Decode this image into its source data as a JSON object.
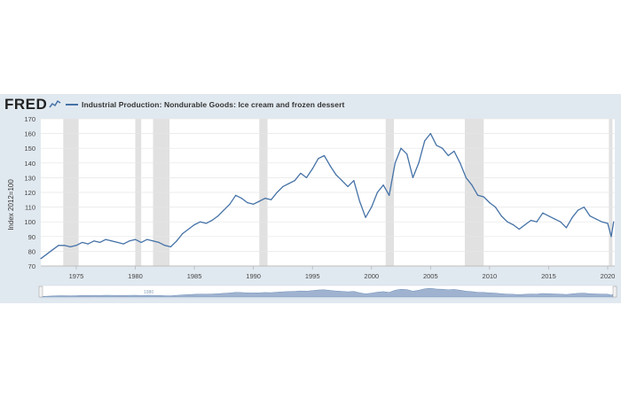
{
  "header": {
    "logo_text": "FRED",
    "legend_label": "Industrial Production: Nondurable Goods: Ice cream and frozen dessert",
    "series_color": "#4572a7",
    "logo_graph_icon": "line-graph-icon"
  },
  "navigator": {
    "left_handle_icon": "range-handle-icon",
    "right_handle_icon": "range-handle-icon",
    "label": "1980"
  },
  "chart_data": {
    "type": "line",
    "title": "",
    "xlabel": "",
    "ylabel": "Index 2012=100",
    "xlim": [
      1972.0,
      2020.6
    ],
    "ylim": [
      70,
      170
    ],
    "yticks": [
      70,
      80,
      90,
      100,
      110,
      120,
      130,
      140,
      150,
      160,
      170
    ],
    "xticks": [
      1975,
      1980,
      1985,
      1990,
      1995,
      2000,
      2005,
      2010,
      2015,
      2020
    ],
    "grid": "horizontal",
    "recessions": [
      [
        1973.9,
        1975.2
      ],
      [
        1980.0,
        1980.5
      ],
      [
        1981.5,
        1982.9
      ],
      [
        1990.5,
        1991.2
      ],
      [
        2001.2,
        2001.9
      ],
      [
        2007.9,
        2009.5
      ],
      [
        2020.1,
        2020.4
      ]
    ],
    "series": [
      {
        "name": "Industrial Production: Nondurable Goods: Ice cream and frozen dessert",
        "x": [
          1972.0,
          1972.5,
          1973.0,
          1973.5,
          1974.0,
          1974.5,
          1975.0,
          1975.5,
          1976.0,
          1976.5,
          1977.0,
          1977.5,
          1978.0,
          1978.5,
          1979.0,
          1979.5,
          1980.0,
          1980.5,
          1981.0,
          1981.5,
          1982.0,
          1982.5,
          1983.0,
          1983.5,
          1984.0,
          1984.5,
          1985.0,
          1985.5,
          1986.0,
          1986.5,
          1987.0,
          1987.5,
          1988.0,
          1988.5,
          1989.0,
          1989.5,
          1990.0,
          1990.5,
          1991.0,
          1991.5,
          1992.0,
          1992.5,
          1993.0,
          1993.5,
          1994.0,
          1994.5,
          1995.0,
          1995.5,
          1996.0,
          1996.5,
          1997.0,
          1997.5,
          1998.0,
          1998.5,
          1999.0,
          1999.5,
          2000.0,
          2000.5,
          2001.0,
          2001.5,
          2002.0,
          2002.5,
          2003.0,
          2003.5,
          2004.0,
          2004.5,
          2005.0,
          2005.5,
          2006.0,
          2006.5,
          2007.0,
          2007.5,
          2008.0,
          2008.5,
          2009.0,
          2009.5,
          2010.0,
          2010.5,
          2011.0,
          2011.5,
          2012.0,
          2012.5,
          2013.0,
          2013.5,
          2014.0,
          2014.5,
          2015.0,
          2015.5,
          2016.0,
          2016.5,
          2017.0,
          2017.5,
          2018.0,
          2018.5,
          2019.0,
          2019.5,
          2020.0,
          2020.3,
          2020.5
        ],
        "values": [
          75,
          78,
          81,
          84,
          84,
          83,
          84,
          86,
          85,
          87,
          86,
          88,
          87,
          86,
          85,
          87,
          88,
          86,
          88,
          87,
          86,
          84,
          83,
          87,
          92,
          95,
          98,
          100,
          99,
          101,
          104,
          108,
          112,
          118,
          116,
          113,
          112,
          114,
          116,
          115,
          120,
          124,
          126,
          128,
          133,
          130,
          136,
          143,
          145,
          138,
          132,
          128,
          124,
          128,
          114,
          103,
          110,
          120,
          125,
          118,
          140,
          150,
          146,
          130,
          140,
          155,
          160,
          152,
          150,
          145,
          148,
          140,
          130,
          125,
          118,
          117,
          113,
          110,
          104,
          100,
          98,
          95,
          98,
          101,
          100,
          106,
          104,
          102,
          100,
          96,
          103,
          108,
          110,
          104,
          102,
          100,
          99,
          90,
          100
        ]
      }
    ]
  }
}
